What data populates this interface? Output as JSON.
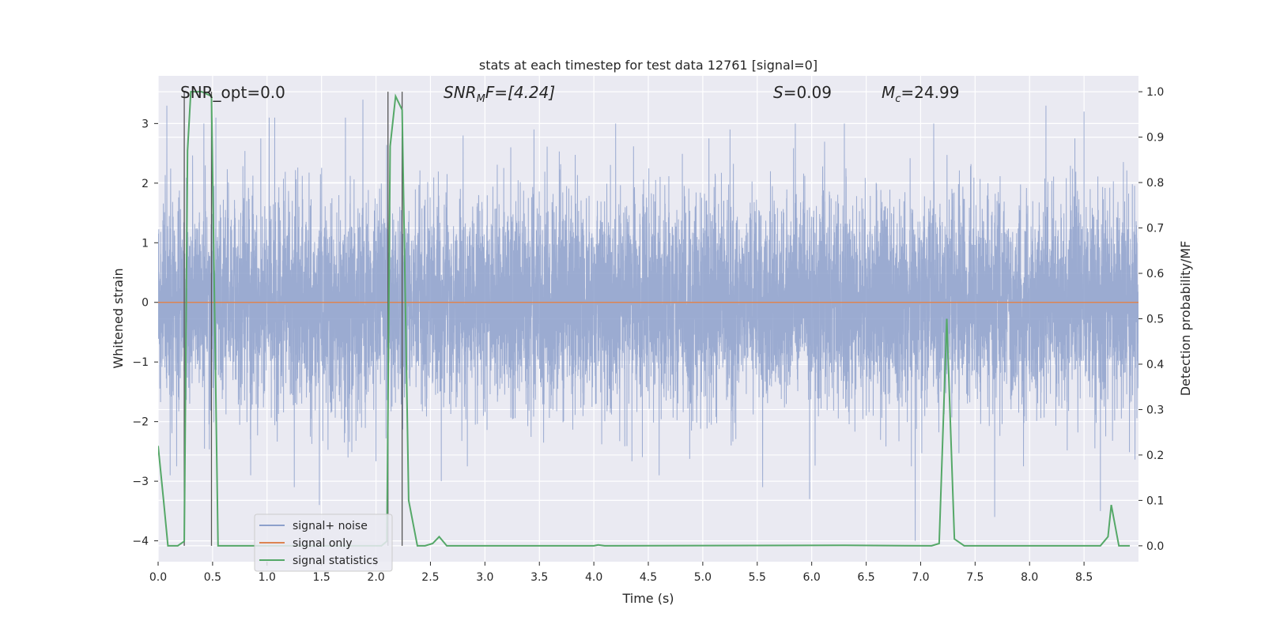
{
  "chart_data": {
    "type": "line",
    "title": "stats at each timestep for test data 12761 [signal=0]",
    "xlabel": "Time (s)",
    "ylabel_left": "Whitened strain",
    "ylabel_right": "Detection probability/MF",
    "xlim": [
      0,
      9.0
    ],
    "ylim_left": [
      -4.35,
      3.8
    ],
    "ylim_right": [
      -0.035,
      1.035
    ],
    "x_ticks": [
      0.0,
      0.5,
      1.0,
      1.5,
      2.0,
      2.5,
      3.0,
      3.5,
      4.0,
      4.5,
      5.0,
      5.5,
      6.0,
      6.5,
      7.0,
      7.5,
      8.0,
      8.5
    ],
    "x_tick_labels": [
      "0.0",
      "0.5",
      "1.0",
      "1.5",
      "2.0",
      "2.5",
      "3.0",
      "3.5",
      "4.0",
      "4.5",
      "5.0",
      "5.5",
      "6.0",
      "6.5",
      "7.0",
      "7.5",
      "8.0",
      "8.5"
    ],
    "y_left_ticks": [
      3,
      2,
      1,
      0,
      -1,
      -2,
      -3,
      -4
    ],
    "y_left_tick_labels": [
      "3",
      "2",
      "1",
      "0",
      "−1",
      "−2",
      "−3",
      "−4"
    ],
    "y_right_ticks": [
      1.0,
      0.9,
      0.8,
      0.7,
      0.6,
      0.5,
      0.4,
      0.3,
      0.2,
      0.1,
      0.0
    ],
    "y_right_tick_labels": [
      "1.0",
      "0.9",
      "0.8",
      "0.7",
      "0.6",
      "0.5",
      "0.4",
      "0.3",
      "0.2",
      "0.1",
      "0.0"
    ],
    "grid": true,
    "legend_position": "lower-left",
    "annotations": {
      "snr_opt": "SNR_opt=0.0",
      "snr_mf_main": "SNR",
      "snr_mf_sub": "M",
      "snr_mf_rest": "F=[4.24]",
      "s_var": "S",
      "s_rest": "=0.09",
      "mc_var": "M",
      "mc_sub": "c",
      "mc_rest": "=24.99"
    },
    "vlines_x": [
      0.24,
      0.49,
      2.11,
      2.24
    ],
    "series": [
      {
        "name": "signal+ noise",
        "color": "#8da0cb",
        "axis": "left",
        "style": "noise",
        "sample_rate": 1024,
        "std": 0.85,
        "seed": 12761,
        "spikes": [
          [
            0.08,
            3.3
          ],
          [
            0.11,
            -2.9
          ],
          [
            0.42,
            3.0
          ],
          [
            0.53,
            3.1
          ],
          [
            0.85,
            -2.9
          ],
          [
            1.02,
            3.1
          ],
          [
            1.07,
            3.1
          ],
          [
            1.25,
            -3.1
          ],
          [
            1.48,
            -3.4
          ],
          [
            1.72,
            3.1
          ],
          [
            1.88,
            3.4
          ],
          [
            2.6,
            -3.0
          ],
          [
            2.8,
            2.8
          ],
          [
            3.45,
            2.9
          ],
          [
            4.2,
            3.0
          ],
          [
            4.6,
            -2.9
          ],
          [
            5.25,
            2.9
          ],
          [
            5.55,
            -3.1
          ],
          [
            5.85,
            3.0
          ],
          [
            5.98,
            -3.3
          ],
          [
            6.3,
            3.0
          ],
          [
            6.95,
            -4.0
          ],
          [
            7.12,
            3.0
          ],
          [
            7.68,
            -3.6
          ],
          [
            8.15,
            3.3
          ],
          [
            8.5,
            3.2
          ],
          [
            8.65,
            -3.5
          ]
        ]
      },
      {
        "name": "signal only",
        "color": "#dd8452",
        "axis": "left",
        "style": "zero",
        "y": 0.0
      },
      {
        "name": "signal statistics",
        "color": "#55a868",
        "axis": "right",
        "style": "line",
        "x": [
          0.0,
          0.05,
          0.09,
          0.18,
          0.24,
          0.27,
          0.3,
          0.4,
          0.49,
          0.55,
          1.9,
          2.05,
          2.1,
          2.13,
          2.18,
          2.24,
          2.3,
          2.38,
          2.45,
          2.52,
          2.58,
          2.65,
          4.0,
          4.04,
          4.1,
          6.3,
          7.1,
          7.17,
          7.24,
          7.31,
          7.4,
          8.65,
          8.72,
          8.75,
          8.82,
          8.92
        ],
        "y": [
          0.22,
          0.1,
          0.0,
          0.0,
          0.01,
          0.87,
          1.0,
          1.0,
          0.99,
          0.0,
          0.0,
          0.0,
          0.01,
          0.88,
          0.99,
          0.96,
          0.1,
          0.0,
          0.0,
          0.005,
          0.02,
          0.0,
          0.0,
          0.002,
          0.0,
          0.001,
          0.0,
          0.005,
          0.5,
          0.015,
          0.0,
          0.0,
          0.02,
          0.09,
          0.0,
          0.0
        ]
      }
    ]
  }
}
